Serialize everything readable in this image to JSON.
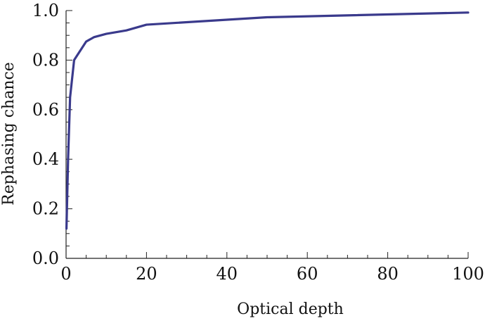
{
  "chart_data": {
    "type": "line",
    "title": "",
    "xlabel": "Optical depth",
    "ylabel": "Rephasing chance",
    "xlim": [
      0,
      100
    ],
    "ylim": [
      0,
      1
    ],
    "x_ticks": [
      0,
      20,
      40,
      60,
      80,
      100
    ],
    "x_tick_labels": [
      "0",
      "20",
      "40",
      "60",
      "80",
      "100"
    ],
    "y_ticks": [
      0,
      0.2,
      0.4,
      0.6,
      0.8,
      1.0
    ],
    "y_tick_labels": [
      "0.0",
      "0.2",
      "0.4",
      "0.6",
      "0.8",
      "1.0"
    ],
    "grid": false,
    "series": [
      {
        "color": "#3a3a8c",
        "x": [
          0.1,
          0.5,
          1,
          2,
          5,
          7,
          10,
          15,
          20,
          50,
          100
        ],
        "y": [
          0.12,
          0.4,
          0.65,
          0.8,
          0.875,
          0.893,
          0.906,
          0.92,
          0.943,
          0.973,
          0.992
        ]
      }
    ]
  }
}
